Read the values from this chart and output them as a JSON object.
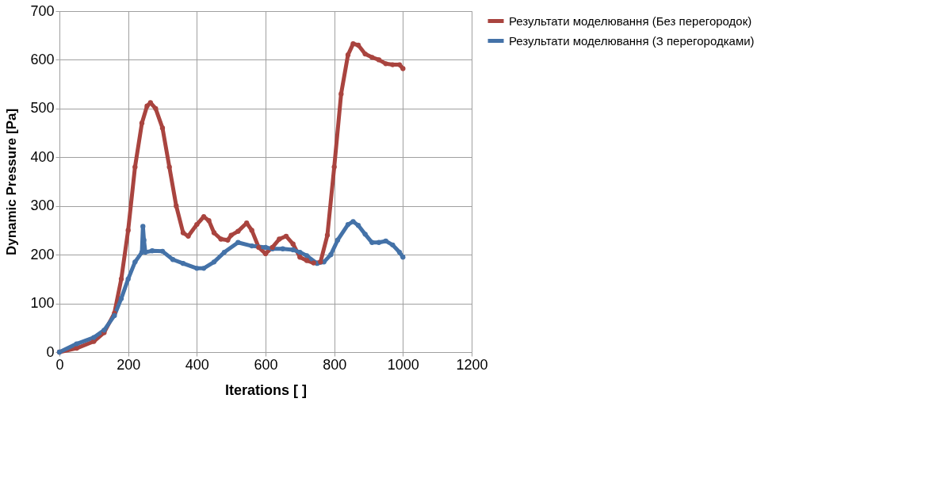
{
  "chart_data": {
    "type": "line",
    "xlabel": "Iterations [ ]",
    "ylabel": "Dynamic Pressure [Pa]",
    "xlim": [
      0,
      1200
    ],
    "xticks": [
      0,
      200,
      400,
      600,
      800,
      1000,
      1200
    ],
    "ylim": [
      0,
      700
    ],
    "yticks": [
      0,
      100,
      200,
      300,
      400,
      500,
      600,
      700
    ],
    "grid": true,
    "legend": "right",
    "marker": "circle",
    "line_style": "solid",
    "series": [
      {
        "name": "Результати моделювання (Без перегородок)",
        "color": "#a9443f",
        "x": [
          0,
          50,
          100,
          130,
          160,
          180,
          200,
          220,
          240,
          255,
          265,
          280,
          300,
          320,
          340,
          360,
          375,
          400,
          420,
          435,
          450,
          470,
          490,
          500,
          520,
          545,
          560,
          580,
          600,
          620,
          640,
          660,
          680,
          700,
          720,
          740,
          760,
          780,
          800,
          820,
          840,
          855,
          870,
          890,
          910,
          930,
          950,
          970,
          990,
          1000
        ],
        "values": [
          0,
          8,
          22,
          40,
          80,
          150,
          250,
          380,
          470,
          505,
          512,
          500,
          460,
          380,
          300,
          245,
          238,
          262,
          278,
          270,
          245,
          232,
          230,
          240,
          248,
          265,
          250,
          215,
          202,
          215,
          232,
          238,
          222,
          195,
          188,
          183,
          185,
          240,
          380,
          530,
          610,
          633,
          630,
          612,
          605,
          600,
          592,
          590,
          590,
          582
        ]
      },
      {
        "name": "Результати моделювання (З перегородками)",
        "color": "#4472a8",
        "x": [
          0,
          50,
          100,
          130,
          160,
          180,
          200,
          220,
          240,
          243,
          246,
          250,
          270,
          300,
          330,
          360,
          400,
          420,
          450,
          480,
          520,
          560,
          600,
          620,
          650,
          680,
          700,
          720,
          750,
          770,
          790,
          810,
          840,
          855,
          870,
          890,
          910,
          930,
          950,
          970,
          990,
          1000
        ],
        "values": [
          0,
          17,
          30,
          45,
          75,
          110,
          150,
          185,
          205,
          258,
          230,
          205,
          208,
          207,
          190,
          182,
          172,
          172,
          185,
          205,
          225,
          218,
          215,
          212,
          212,
          210,
          205,
          198,
          182,
          185,
          200,
          230,
          262,
          268,
          260,
          242,
          225,
          225,
          228,
          220,
          205,
          195
        ]
      }
    ]
  }
}
